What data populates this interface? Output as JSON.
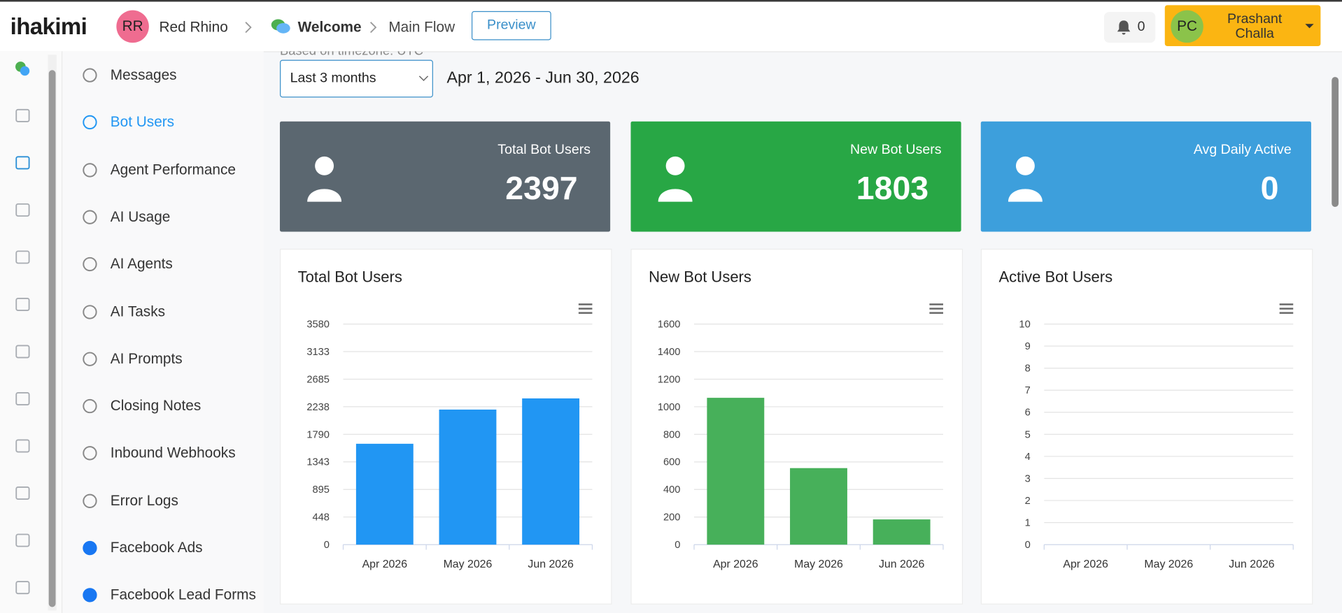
{
  "header": {
    "logo": "ihakimi",
    "workspace_initials": "RR",
    "workspace": "Red Rhino",
    "breadcrumb": [
      "Welcome",
      "Main Flow"
    ],
    "preview_button": "Preview",
    "notifications": 0,
    "user_initials": "PC",
    "user_name": "Prashant Challa"
  },
  "sidebar": {
    "active": 1,
    "items": [
      "Messages",
      "Bot Users",
      "Agent Performance",
      "AI Usage",
      "AI Agents",
      "AI Tasks",
      "AI Prompts",
      "Closing Notes",
      "Inbound Webhooks",
      "Error Logs",
      "Facebook Ads",
      "Facebook Lead Forms"
    ]
  },
  "filters": {
    "timezone_note": "Based on timezone: UTC",
    "range": "Last 3 months",
    "dates": "Apr 1, 2026 - Jun 30, 2026"
  },
  "stats": [
    {
      "label": "Total Bot Users",
      "value": 2397,
      "color": "#5b6770"
    },
    {
      "label": "New Bot Users",
      "value": 1803,
      "color": "#28a745"
    },
    {
      "label": "Avg Daily Active",
      "value": 0,
      "color": "#3d9fdc"
    }
  ],
  "charts": [
    {
      "type": "bar",
      "title": "Total Bot Users",
      "categories": [
        "Apr 2026",
        "May 2026",
        "Jun 2026"
      ],
      "values": [
        1637,
        2192,
        2373
      ],
      "color": "#2196f3",
      "ylim": [
        0,
        3580
      ],
      "yticks": [
        0,
        448,
        895,
        1343,
        1790,
        2238,
        2685,
        3133,
        3580
      ],
      "grid": true
    },
    {
      "type": "bar",
      "title": "New Bot Users",
      "categories": [
        "Apr 2026",
        "May 2026",
        "Jun 2026"
      ],
      "values": [
        1065,
        555,
        183
      ],
      "color": "#47b05a",
      "ylim": [
        0,
        1600
      ],
      "yticks": [
        0,
        200,
        400,
        600,
        800,
        1000,
        1200,
        1400,
        1600
      ],
      "grid": true
    },
    {
      "type": "bar",
      "title": "Active Bot Users",
      "categories": [
        "Apr 2026",
        "May 2026",
        "Jun 2026"
      ],
      "values": [
        0,
        0,
        0
      ],
      "color": "#3d9fdc",
      "ylim": [
        0,
        10
      ],
      "yticks": [
        0,
        1,
        2,
        3,
        4,
        5,
        6,
        7,
        8,
        9,
        10
      ],
      "grid": true
    }
  ]
}
